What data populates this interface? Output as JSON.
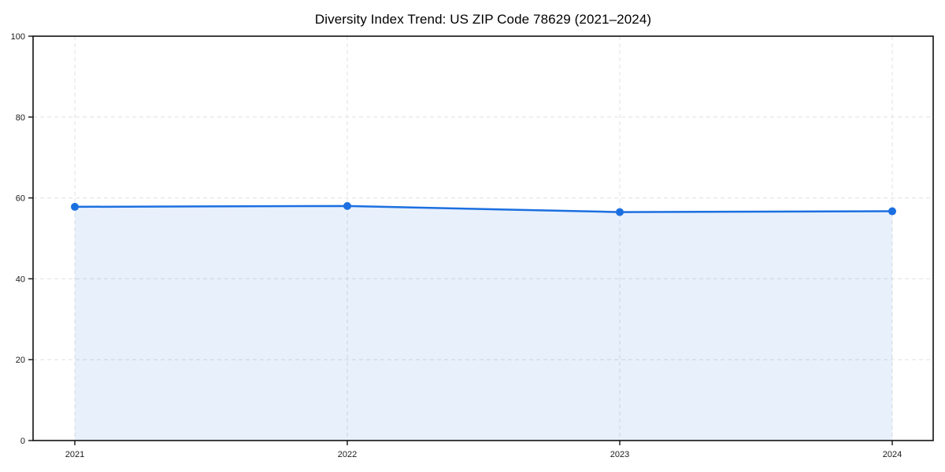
{
  "chart_data": {
    "type": "area",
    "title": "Diversity Index Trend: US ZIP Code 78629 (2021–2024)",
    "x": [
      "2021",
      "2022",
      "2023",
      "2024"
    ],
    "series": [
      {
        "name": "Diversity Index",
        "values": [
          57.8,
          58.0,
          56.5,
          56.7
        ]
      }
    ],
    "xlabel": "",
    "ylabel": "",
    "ylim": [
      0,
      100
    ],
    "yticks": [
      0,
      20,
      40,
      60,
      80,
      100
    ],
    "grid": "dashed horizontal and vertical gridlines",
    "legend_position": "none",
    "colors": {
      "line": "#1b6fe0",
      "marker": "#1b6fe0",
      "fill": "rgba(27,111,224,0.10)",
      "grid": "#e0e0e0",
      "axis": "#111111",
      "tick_label": "#1a1a1a",
      "title": "#000000",
      "background": "#ffffff"
    }
  }
}
